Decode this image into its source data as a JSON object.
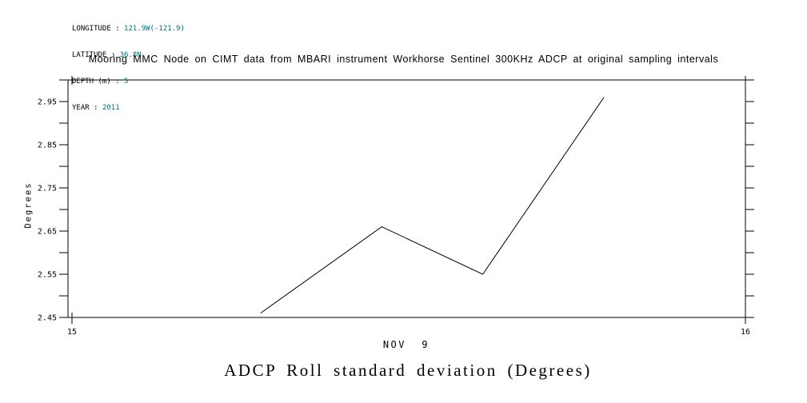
{
  "page": {
    "background": "#ffffff",
    "text_color": "#000000"
  },
  "meta_header": {
    "separator": " : ",
    "value_color": "#007070",
    "fields": [
      {
        "label": "LONGITUDE",
        "value": "121.9W(-121.9)"
      },
      {
        "label": "LATITUDE",
        "value": "36.8N"
      },
      {
        "label": "DEPTH (m)",
        "value": "5"
      },
      {
        "label": "YEAR",
        "value": "2011"
      }
    ]
  },
  "chart_data": {
    "type": "line",
    "title": "Mooring MMC Node on CIMT data from MBARI instrument Workhorse Sentinel 300KHz ADCP at original sampling intervals",
    "bottom_title": "ADCP Roll standard deviation (Degrees)",
    "xlabel": "NOV  9",
    "ylabel": "Degrees",
    "series": [
      {
        "name": "ADCP Roll standard deviation",
        "x": [
          15.28,
          15.46,
          15.61,
          15.79
        ],
        "y": [
          2.46,
          2.66,
          2.55,
          2.96
        ]
      }
    ],
    "xlim": [
      15,
      16
    ],
    "xticks": [
      {
        "value": 15,
        "label": "15"
      },
      {
        "value": 16,
        "label": "16"
      }
    ],
    "ylim": [
      2.45,
      3.0
    ],
    "yticks_labeled": [
      2.45,
      2.55,
      2.65,
      2.75,
      2.85,
      2.95
    ],
    "ytick_minor_step": 0.05,
    "grid": false,
    "legend": "none",
    "line_color": "#000000",
    "axis_color": "#000000"
  }
}
